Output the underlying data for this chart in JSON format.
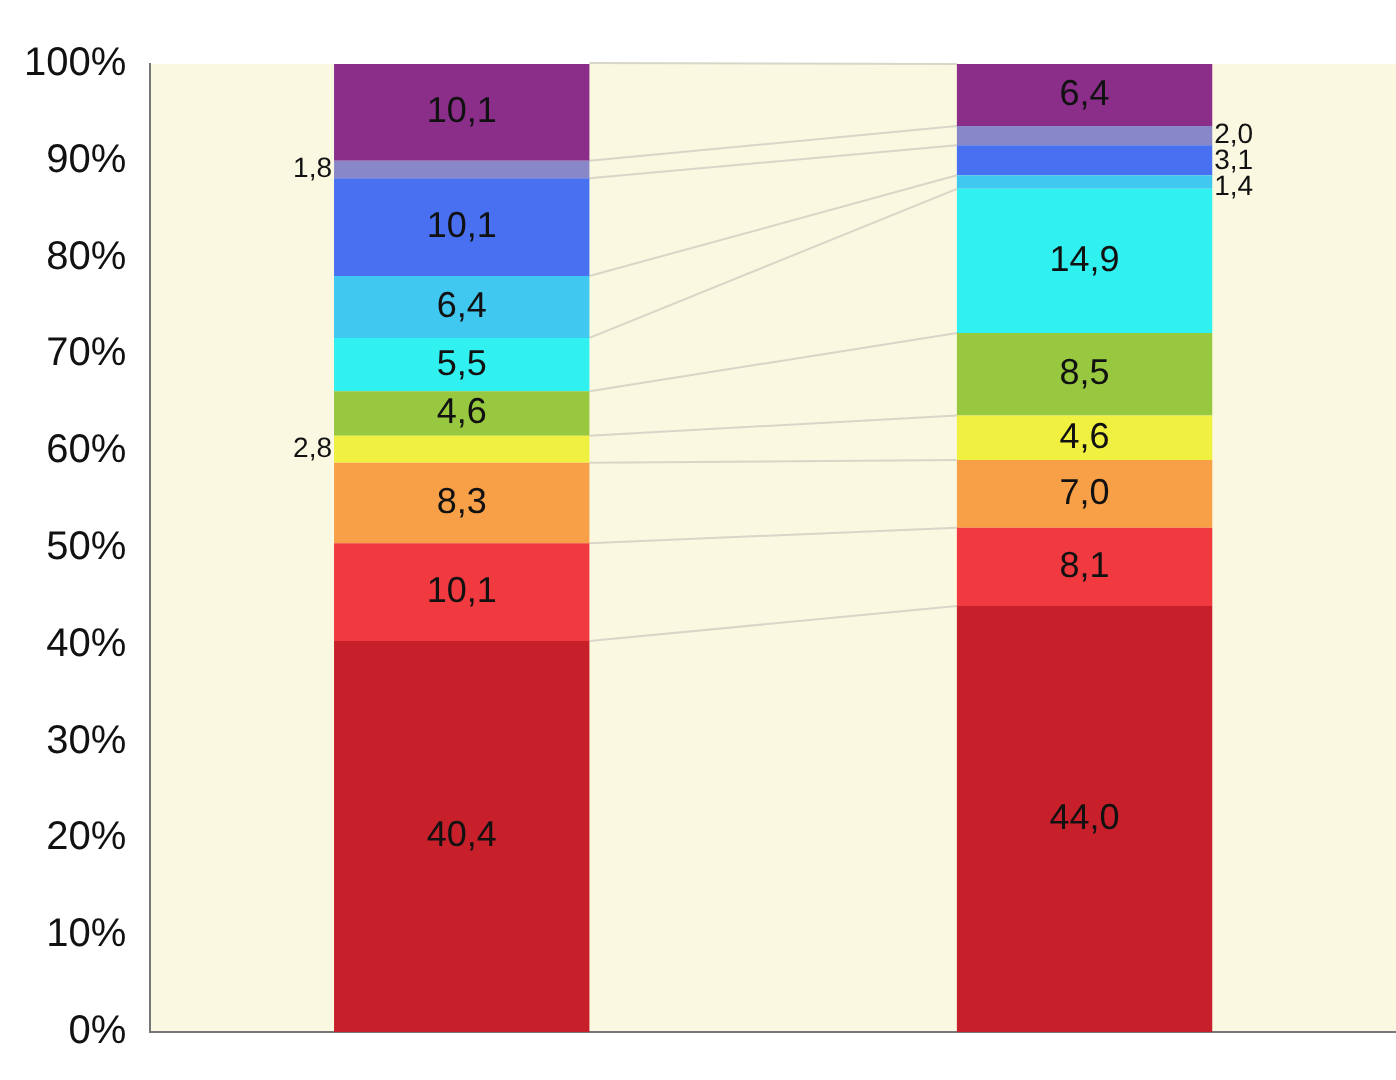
{
  "chart_data": {
    "type": "bar",
    "stacked": true,
    "categories": [
      null,
      null
    ],
    "ylim": [
      0,
      100
    ],
    "yticks": [
      {
        "value": 0,
        "label": "0%"
      },
      {
        "value": 10,
        "label": "10%"
      },
      {
        "value": 20,
        "label": "20%"
      },
      {
        "value": 30,
        "label": "30%"
      },
      {
        "value": 40,
        "label": "40%"
      },
      {
        "value": 50,
        "label": "50%"
      },
      {
        "value": 60,
        "label": "60%"
      },
      {
        "value": 70,
        "label": "70%"
      },
      {
        "value": 80,
        "label": "80%"
      },
      {
        "value": 90,
        "label": "90%"
      },
      {
        "value": 100,
        "label": "100%"
      }
    ],
    "grid": false,
    "legend": false,
    "series": [
      {
        "color": "#c8202a",
        "values": [
          40.4,
          44.0
        ],
        "value_labels": [
          "40,4",
          "44,0"
        ]
      },
      {
        "color": "#f03a40",
        "values": [
          10.1,
          8.1
        ],
        "value_labels": [
          "10,1",
          "8,1"
        ]
      },
      {
        "color": "#f8a048",
        "values": [
          8.3,
          7.0
        ],
        "value_labels": [
          "8,3",
          "7,0"
        ]
      },
      {
        "color": "#f0f040",
        "values": [
          2.8,
          4.6
        ],
        "value_labels": [
          "2,8",
          "4,6"
        ]
      },
      {
        "color": "#98c840",
        "values": [
          4.6,
          8.5
        ],
        "value_labels": [
          "4,6",
          "8,5"
        ]
      },
      {
        "color": "#30f0f0",
        "values": [
          5.5,
          14.9
        ],
        "value_labels": [
          "5,5",
          "14,9"
        ]
      },
      {
        "color": "#40c8f0",
        "values": [
          6.4,
          1.4
        ],
        "value_labels": [
          "6,4",
          "1,4"
        ]
      },
      {
        "color": "#4870f0",
        "values": [
          10.1,
          3.1
        ],
        "value_labels": [
          "10,1",
          "3,1"
        ]
      },
      {
        "color": "#8888c8",
        "values": [
          1.8,
          2.0
        ],
        "value_labels": [
          "1,8",
          "2,0"
        ]
      },
      {
        "color": "#8a2e8a",
        "values": [
          10.1,
          6.4
        ],
        "value_labels": [
          "10,1",
          "6,4"
        ]
      }
    ]
  }
}
